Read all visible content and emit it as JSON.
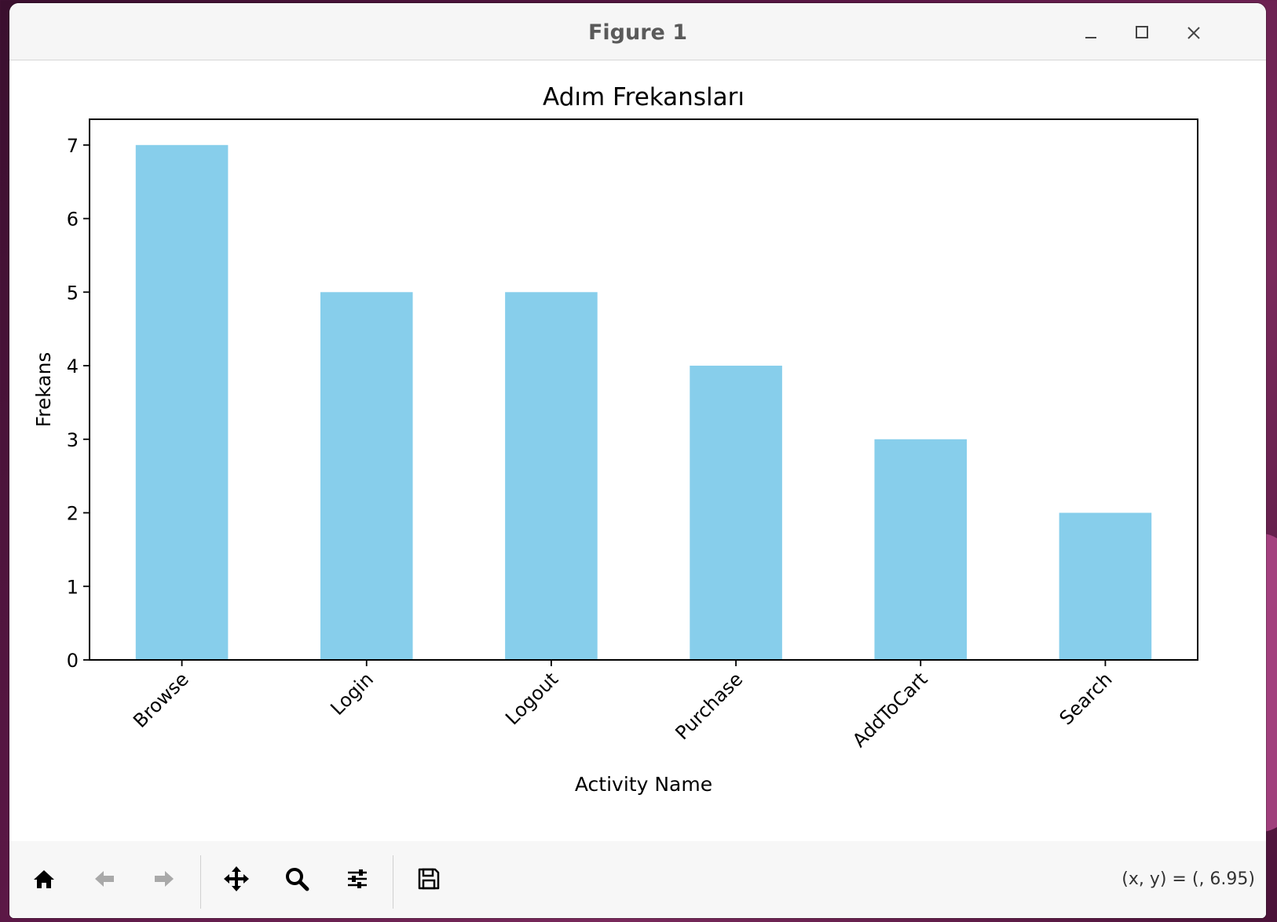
{
  "window": {
    "title": "Figure 1",
    "minimize_icon": "minimize-icon",
    "maximize_icon": "maximize-icon",
    "close_icon": "close-icon"
  },
  "toolbar": {
    "buttons": [
      {
        "name": "home-button",
        "icon": "home-icon",
        "enabled": true
      },
      {
        "name": "back-button",
        "icon": "arrow-left-icon",
        "enabled": false
      },
      {
        "name": "forward-button",
        "icon": "arrow-right-icon",
        "enabled": false
      },
      {
        "name": "pan-button",
        "icon": "move-icon",
        "enabled": true
      },
      {
        "name": "zoom-button",
        "icon": "magnifier-icon",
        "enabled": true
      },
      {
        "name": "configure-subplots-button",
        "icon": "sliders-icon",
        "enabled": true
      },
      {
        "name": "save-button",
        "icon": "floppy-disk-icon",
        "enabled": true
      }
    ],
    "coordinates": "(x, y) = (, 6.95)"
  },
  "chart_data": {
    "type": "bar",
    "title": "Adım Frekansları",
    "xlabel": "Activity Name",
    "ylabel": "Frekans",
    "categories": [
      "Browse",
      "Login",
      "Logout",
      "Purchase",
      "AddToCart",
      "Search"
    ],
    "values": [
      7,
      5,
      5,
      4,
      3,
      2
    ],
    "ylim": [
      0,
      7.35
    ],
    "yticks": [
      0,
      1,
      2,
      3,
      4,
      5,
      6,
      7
    ],
    "bar_color": "#87ceeb",
    "xtick_rotation": 45,
    "grid": false,
    "legend": "none"
  }
}
